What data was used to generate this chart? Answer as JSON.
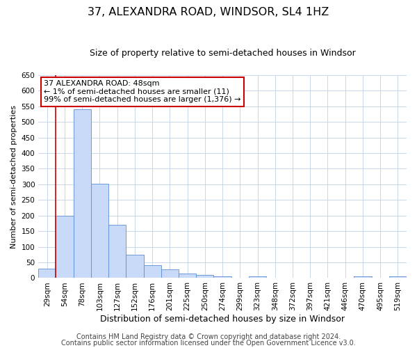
{
  "title": "37, ALEXANDRA ROAD, WINDSOR, SL4 1HZ",
  "subtitle": "Size of property relative to semi-detached houses in Windsor",
  "xlabel": "Distribution of semi-detached houses by size in Windsor",
  "ylabel": "Number of semi-detached properties",
  "bar_labels": [
    "29sqm",
    "54sqm",
    "78sqm",
    "103sqm",
    "127sqm",
    "152sqm",
    "176sqm",
    "201sqm",
    "225sqm",
    "250sqm",
    "274sqm",
    "299sqm",
    "323sqm",
    "348sqm",
    "372sqm",
    "397sqm",
    "421sqm",
    "446sqm",
    "470sqm",
    "495sqm",
    "519sqm"
  ],
  "bar_values": [
    30,
    200,
    540,
    302,
    170,
    75,
    42,
    28,
    15,
    10,
    5,
    0,
    5,
    0,
    0,
    0,
    0,
    0,
    5,
    0,
    5
  ],
  "bar_color": "#c9daf8",
  "bar_edge_color": "#5b8fd4",
  "annotation_title": "37 ALEXANDRA ROAD: 48sqm",
  "annotation_line1": "← 1% of semi-detached houses are smaller (11)",
  "annotation_line2": "99% of semi-detached houses are larger (1,376) →",
  "annotation_box_color": "#ffffff",
  "annotation_box_edge": "#cc0000",
  "red_line_color": "#cc0000",
  "ylim": [
    0,
    650
  ],
  "yticks": [
    0,
    50,
    100,
    150,
    200,
    250,
    300,
    350,
    400,
    450,
    500,
    550,
    600,
    650
  ],
  "footer1": "Contains HM Land Registry data © Crown copyright and database right 2024.",
  "footer2": "Contains public sector information licensed under the Open Government Licence v3.0.",
  "title_fontsize": 11.5,
  "subtitle_fontsize": 9,
  "xlabel_fontsize": 9,
  "ylabel_fontsize": 8,
  "tick_fontsize": 7.5,
  "annot_fontsize": 8,
  "footer_fontsize": 7,
  "bg_color": "#ffffff",
  "grid_color": "#c8d8ea"
}
